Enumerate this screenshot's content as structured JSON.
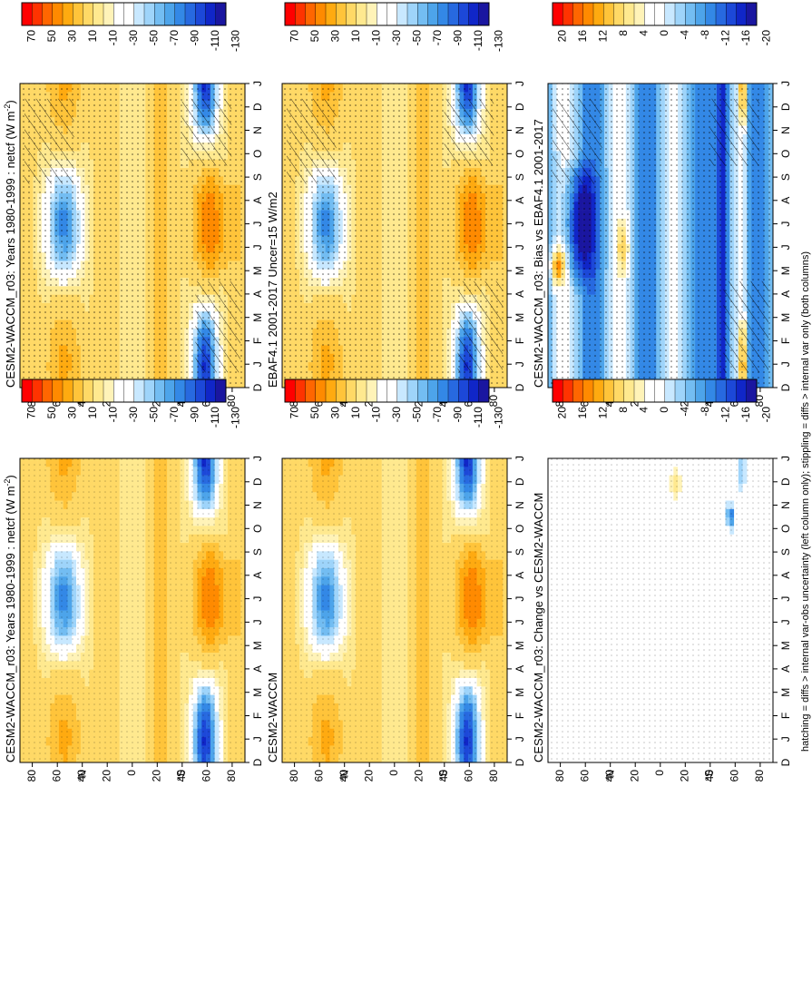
{
  "footer_note": "hatching = diffs > internal var-obs uncertainty (left column only); stippling = diffs > internal var only (both columns)",
  "chart_data": [
    {
      "type": "heatmap",
      "id": "model-left",
      "title": "CESM2-WACCM_r03: Years 1980-1999 : netcf (W m",
      "title_sup": "-2",
      "title_close": ")",
      "x": [
        "D",
        "J",
        "F",
        "M",
        "A",
        "M",
        "J",
        "J",
        "A",
        "S",
        "O",
        "N",
        "D",
        "J"
      ],
      "y_ticks": [
        "80",
        "60",
        "40",
        "20",
        "0",
        "20",
        "40",
        "60",
        "80"
      ],
      "y_label_n": "°N",
      "y_label_s": "°S",
      "zlim": [
        -140,
        80
      ],
      "hatching": true,
      "colorbar_ticks": [
        "70",
        "50",
        "30",
        "10",
        "-10",
        "-30",
        "-50",
        "-70",
        "-90",
        "-110",
        "-130"
      ]
    },
    {
      "type": "heatmap",
      "id": "model-right",
      "title": "CESM2-WACCM_r03: Years 1980-1999 : netcf (W m",
      "title_sup": "-2",
      "title_close": ")",
      "x": [
        "D",
        "J",
        "F",
        "M",
        "A",
        "M",
        "J",
        "J",
        "A",
        "S",
        "O",
        "N",
        "D",
        "J"
      ],
      "y_ticks": [
        "80",
        "60",
        "40",
        "20",
        "0",
        "20",
        "40",
        "60",
        "80"
      ],
      "y_label_n": "°N",
      "y_label_s": "°S",
      "zlim": [
        -140,
        80
      ],
      "hatching": false,
      "colorbar_ticks": [
        "70",
        "50",
        "30",
        "10",
        "-10",
        "-30",
        "-50",
        "-70",
        "-90",
        "-110",
        "-130"
      ]
    },
    {
      "type": "heatmap",
      "id": "obs-left",
      "title": "EBAF4.1 2001-2017 Uncer=15 W/m2",
      "x": [
        "D",
        "J",
        "F",
        "M",
        "A",
        "M",
        "J",
        "J",
        "A",
        "S",
        "O",
        "N",
        "D",
        "J"
      ],
      "y_ticks": [
        "80",
        "60",
        "40",
        "20",
        "0",
        "20",
        "40",
        "60",
        "80"
      ],
      "y_label_n": "°N",
      "y_label_s": "°S",
      "zlim": [
        -140,
        80
      ],
      "hatching": true,
      "colorbar_ticks": [
        "70",
        "50",
        "30",
        "10",
        "-10",
        "-30",
        "-50",
        "-70",
        "-90",
        "-110",
        "-130"
      ]
    },
    {
      "type": "heatmap",
      "id": "ref-right",
      "title": "CESM2-WACCM",
      "x": [
        "D",
        "J",
        "F",
        "M",
        "A",
        "M",
        "J",
        "J",
        "A",
        "S",
        "O",
        "N",
        "D",
        "J"
      ],
      "y_ticks": [
        "80",
        "60",
        "40",
        "20",
        "0",
        "20",
        "40",
        "60",
        "80"
      ],
      "y_label_n": "°N",
      "y_label_s": "°S",
      "zlim": [
        -140,
        80
      ],
      "hatching": false,
      "colorbar_ticks": [
        "70",
        "50",
        "30",
        "10",
        "-10",
        "-30",
        "-50",
        "-70",
        "-90",
        "-110",
        "-130"
      ]
    },
    {
      "type": "heatmap",
      "id": "bias-left",
      "title": "CESM2-WACCM_r03: Bias vs EBAF4.1 2001-2017",
      "x": [
        "D",
        "J",
        "F",
        "M",
        "A",
        "M",
        "J",
        "J",
        "A",
        "S",
        "O",
        "N",
        "D",
        "J"
      ],
      "y_ticks": [
        "80",
        "60",
        "40",
        "20",
        "0",
        "20",
        "40",
        "60",
        "80"
      ],
      "y_label_n": "°N",
      "y_label_s": "°S",
      "zlim": [
        -22,
        22
      ],
      "hatching": true,
      "colorbar_ticks": [
        "20",
        "16",
        "12",
        "8",
        "4",
        "0",
        "-4",
        "-8",
        "-12",
        "-16",
        "-20"
      ]
    },
    {
      "type": "heatmap",
      "id": "change-right",
      "title": "CESM2-WACCM_r03: Change vs CESM2-WACCM",
      "x": [
        "D",
        "J",
        "F",
        "M",
        "A",
        "M",
        "J",
        "J",
        "A",
        "S",
        "O",
        "N",
        "D",
        "J"
      ],
      "y_ticks": [
        "80",
        "60",
        "40",
        "20",
        "0",
        "20",
        "40",
        "60",
        "80"
      ],
      "y_label_n": "°N",
      "y_label_s": "°S",
      "zlim": [
        -22,
        22
      ],
      "hatching": false,
      "colorbar_ticks": [
        "20",
        "16",
        "12",
        "8",
        "4",
        "0",
        "-4",
        "-8",
        "-12",
        "-16",
        "-20"
      ]
    }
  ]
}
